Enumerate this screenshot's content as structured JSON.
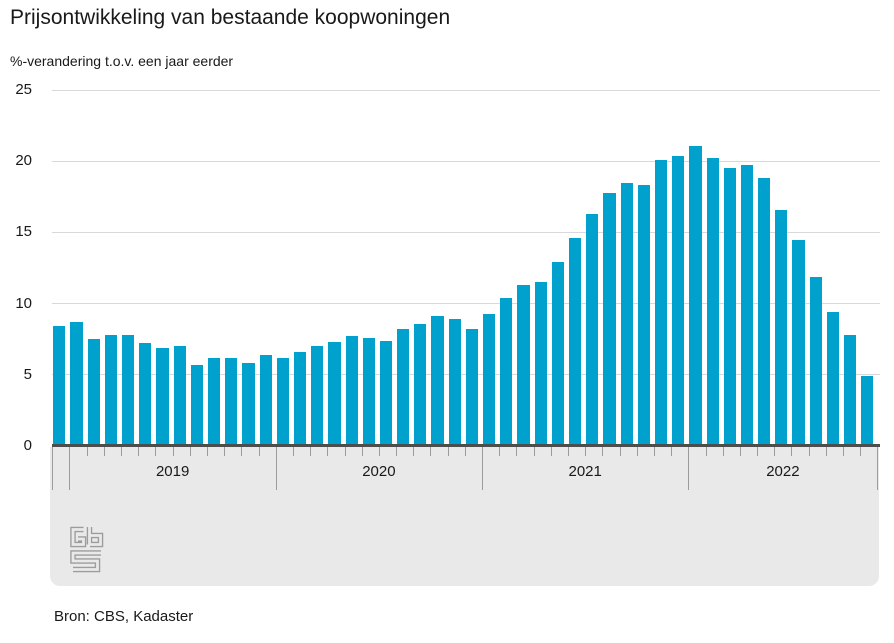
{
  "header": {
    "title": "Prijsontwikkeling van bestaande koopwoningen",
    "subtitle": "%-verandering t.o.v. een jaar eerder"
  },
  "chart_data": {
    "type": "bar",
    "title": "Prijsontwikkeling van bestaande koopwoningen",
    "ylabel": "%-verandering t.o.v. een jaar eerder",
    "xlabel": "",
    "ylim": [
      0,
      25
    ],
    "yticks": [
      0,
      5,
      10,
      15,
      20,
      25
    ],
    "grid": true,
    "legend": false,
    "bar_color": "#00a1cd",
    "x_year_labels": [
      "2019",
      "2020",
      "2021",
      "2022"
    ],
    "x": [
      "2018-12",
      "2019-01",
      "2019-02",
      "2019-03",
      "2019-04",
      "2019-05",
      "2019-06",
      "2019-07",
      "2019-08",
      "2019-09",
      "2019-10",
      "2019-11",
      "2019-12",
      "2020-01",
      "2020-02",
      "2020-03",
      "2020-04",
      "2020-05",
      "2020-06",
      "2020-07",
      "2020-08",
      "2020-09",
      "2020-10",
      "2020-11",
      "2020-12",
      "2021-01",
      "2021-02",
      "2021-03",
      "2021-04",
      "2021-05",
      "2021-06",
      "2021-07",
      "2021-08",
      "2021-09",
      "2021-10",
      "2021-11",
      "2021-12",
      "2022-01",
      "2022-02",
      "2022-03",
      "2022-04",
      "2022-05",
      "2022-06",
      "2022-07",
      "2022-08",
      "2022-09",
      "2022-10",
      "2022-11"
    ],
    "values": [
      8.4,
      8.7,
      7.5,
      7.8,
      7.8,
      7.2,
      6.9,
      7.0,
      5.7,
      6.2,
      6.2,
      5.8,
      6.4,
      6.2,
      6.6,
      7.0,
      7.3,
      7.7,
      7.6,
      7.4,
      8.2,
      8.6,
      9.1,
      8.9,
      8.2,
      9.3,
      10.4,
      11.3,
      11.5,
      12.9,
      14.6,
      16.3,
      17.8,
      18.5,
      18.3,
      20.1,
      20.4,
      21.1,
      20.2,
      19.5,
      19.7,
      18.8,
      16.6,
      14.5,
      11.9,
      9.4,
      7.8,
      4.9
    ]
  },
  "footer": {
    "source": "Bron: CBS, Kadaster",
    "logo": "cbs-logo"
  },
  "colors": {
    "bar": "#00a1cd",
    "axis_line": "#4d4d4d",
    "gridline": "#d9d9d9",
    "axis_band": "#e9e9e9",
    "tick": "#9c9c9c",
    "text": "#191919",
    "logo": "#9c9c9c",
    "background": "#ffffff"
  }
}
